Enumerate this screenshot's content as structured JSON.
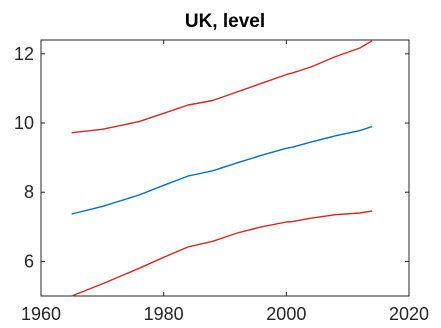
{
  "chart_data": {
    "type": "line",
    "title": "UK, level",
    "xlabel": "",
    "ylabel": "",
    "xlim": [
      1960,
      2020
    ],
    "ylim": [
      5,
      12.4
    ],
    "xticks": [
      1960,
      1980,
      2000,
      2020
    ],
    "yticks": [
      6,
      8,
      10,
      12
    ],
    "grid": false,
    "series": [
      {
        "color": "#d62728",
        "x": [
          1965,
          1970,
          1976,
          1980,
          1984,
          1988,
          1992,
          1996,
          2000,
          2001,
          2004,
          2008,
          2012,
          2014
        ],
        "values": [
          9.72,
          9.82,
          10.04,
          10.28,
          10.52,
          10.65,
          10.9,
          11.15,
          11.4,
          11.45,
          11.62,
          11.92,
          12.17,
          12.38
        ]
      },
      {
        "color": "#0072bd",
        "x": [
          1965,
          1970,
          1976,
          1980,
          1984,
          1988,
          1992,
          1996,
          2000,
          2001,
          2004,
          2008,
          2012,
          2014
        ],
        "values": [
          7.37,
          7.59,
          7.92,
          8.2,
          8.47,
          8.62,
          8.85,
          9.07,
          9.27,
          9.3,
          9.45,
          9.63,
          9.78,
          9.9
        ]
      },
      {
        "color": "#d62728",
        "x": [
          1965,
          1970,
          1976,
          1980,
          1984,
          1988,
          1992,
          1996,
          2000,
          2001,
          2004,
          2008,
          2012,
          2014
        ],
        "values": [
          5.0,
          5.35,
          5.8,
          6.12,
          6.42,
          6.58,
          6.82,
          7.0,
          7.14,
          7.15,
          7.25,
          7.35,
          7.4,
          7.46
        ]
      }
    ]
  }
}
